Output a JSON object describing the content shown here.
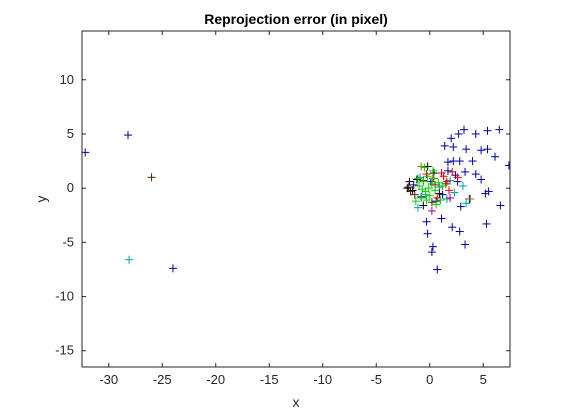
{
  "chart_data": {
    "type": "scatter",
    "title": "Reprojection error (in pixel)",
    "xlabel": "x",
    "ylabel": "y",
    "xlim": [
      -32.5,
      7.5
    ],
    "ylim": [
      -16.5,
      14.5
    ],
    "xticks": [
      -30,
      -25,
      -20,
      -15,
      -10,
      -5,
      0,
      5
    ],
    "yticks": [
      -15,
      -10,
      -5,
      0,
      5,
      10
    ],
    "grid": false,
    "marker": "+",
    "series": [
      {
        "color": "#0000a0",
        "points": [
          [
            -32.2,
            3.3
          ],
          [
            -28.2,
            4.9
          ],
          [
            -24.0,
            -7.4
          ],
          [
            2.7,
            5.0
          ],
          [
            3.2,
            5.4
          ],
          [
            4.3,
            5.0
          ],
          [
            5.4,
            5.3
          ],
          [
            6.5,
            5.4
          ],
          [
            2.0,
            4.6
          ],
          [
            2.2,
            3.8
          ],
          [
            3.4,
            3.6
          ],
          [
            4.8,
            3.5
          ],
          [
            5.4,
            3.6
          ],
          [
            1.4,
            3.9
          ],
          [
            2.2,
            2.5
          ],
          [
            1.7,
            2.4
          ],
          [
            2.8,
            2.5
          ],
          [
            4.0,
            2.5
          ],
          [
            6.1,
            2.9
          ],
          [
            7.4,
            2.1
          ],
          [
            3.3,
            1.5
          ],
          [
            4.3,
            1.3
          ],
          [
            2.4,
            1.2
          ],
          [
            4.8,
            0.8
          ],
          [
            5.2,
            -0.5
          ],
          [
            5.5,
            -0.3
          ],
          [
            6.6,
            -1.6
          ],
          [
            3.7,
            -1.0
          ],
          [
            2.9,
            -1.7
          ],
          [
            1.1,
            -2.8
          ],
          [
            2.1,
            -3.6
          ],
          [
            2.8,
            -4.0
          ],
          [
            3.3,
            -5.2
          ],
          [
            5.3,
            -3.3
          ],
          [
            0.3,
            -5.4
          ],
          [
            0.2,
            -5.9
          ],
          [
            -0.2,
            -4.2
          ],
          [
            0.7,
            -7.5
          ],
          [
            -0.3,
            -3.1
          ],
          [
            0.6,
            -1.2
          ],
          [
            1.2,
            -0.6
          ],
          [
            -1.5,
            0.3
          ],
          [
            -0.8,
            -0.8
          ],
          [
            0.1,
            0.6
          ],
          [
            1.7,
            1.6
          ],
          [
            2.6,
            0.6
          ]
        ]
      },
      {
        "color": "#00a0a0",
        "points": [
          [
            -28.1,
            -6.6
          ],
          [
            3.1,
            0.2
          ],
          [
            3.4,
            -1.4
          ],
          [
            2.3,
            -0.4
          ],
          [
            1.9,
            0.7
          ],
          [
            -1.1,
            -1.8
          ],
          [
            -0.4,
            -0.6
          ],
          [
            0.9,
            0.1
          ],
          [
            1.6,
            -1.0
          ],
          [
            -0.9,
            1.0
          ]
        ]
      },
      {
        "color": "#502800",
        "points": [
          [
            -26.0,
            1.0
          ],
          [
            -2.0,
            0.1
          ],
          [
            -1.4,
            -0.6
          ],
          [
            1.5,
            0.4
          ],
          [
            0.2,
            -1.3
          ],
          [
            -0.6,
            0.7
          ],
          [
            -1.8,
            -0.3
          ]
        ]
      },
      {
        "color": "#000000",
        "points": [
          [
            -2.1,
            0.0
          ],
          [
            -1.6,
            -0.2
          ],
          [
            -1.2,
            0.8
          ],
          [
            -0.6,
            -1.6
          ],
          [
            0.4,
            1.4
          ],
          [
            0.9,
            -0.5
          ],
          [
            -1.9,
            0.6
          ],
          [
            -0.2,
            2.0
          ]
        ]
      },
      {
        "color": "#e00000",
        "points": [
          [
            0.3,
            0.9
          ],
          [
            1.1,
            1.4
          ],
          [
            1.6,
            0.6
          ],
          [
            2.1,
            1.5
          ],
          [
            0.7,
            -0.9
          ],
          [
            1.8,
            -0.2
          ],
          [
            -0.3,
            1.3
          ],
          [
            2.6,
            1.0
          ],
          [
            1.3,
            1.1
          ],
          [
            0.5,
            0.3
          ]
        ]
      },
      {
        "color": "#00d000",
        "points": [
          [
            -1.0,
            0.2
          ],
          [
            -0.6,
            0.6
          ],
          [
            -0.2,
            1.1
          ],
          [
            0.2,
            0.4
          ],
          [
            -0.4,
            -0.3
          ],
          [
            0.0,
            -0.7
          ],
          [
            0.5,
            -0.2
          ],
          [
            -0.8,
            -0.9
          ],
          [
            0.3,
            1.6
          ],
          [
            -1.3,
            -1.2
          ],
          [
            0.8,
            0.5
          ],
          [
            1.0,
            -1.1
          ],
          [
            -0.1,
            0.0
          ],
          [
            -0.5,
            1.9
          ],
          [
            -1.1,
            0.9
          ],
          [
            0.6,
            -1.5
          ],
          [
            0.4,
            0.9
          ],
          [
            -0.7,
            -0.1
          ],
          [
            1.2,
            0.2
          ],
          [
            -0.3,
            -1.1
          ]
        ]
      },
      {
        "color": "#808000",
        "points": [
          [
            3.8,
            -1.0
          ],
          [
            -0.8,
            2.0
          ]
        ]
      },
      {
        "color": "#a000a0",
        "points": [
          [
            1.9,
            -0.9
          ],
          [
            0.2,
            -2.1
          ]
        ]
      }
    ]
  }
}
